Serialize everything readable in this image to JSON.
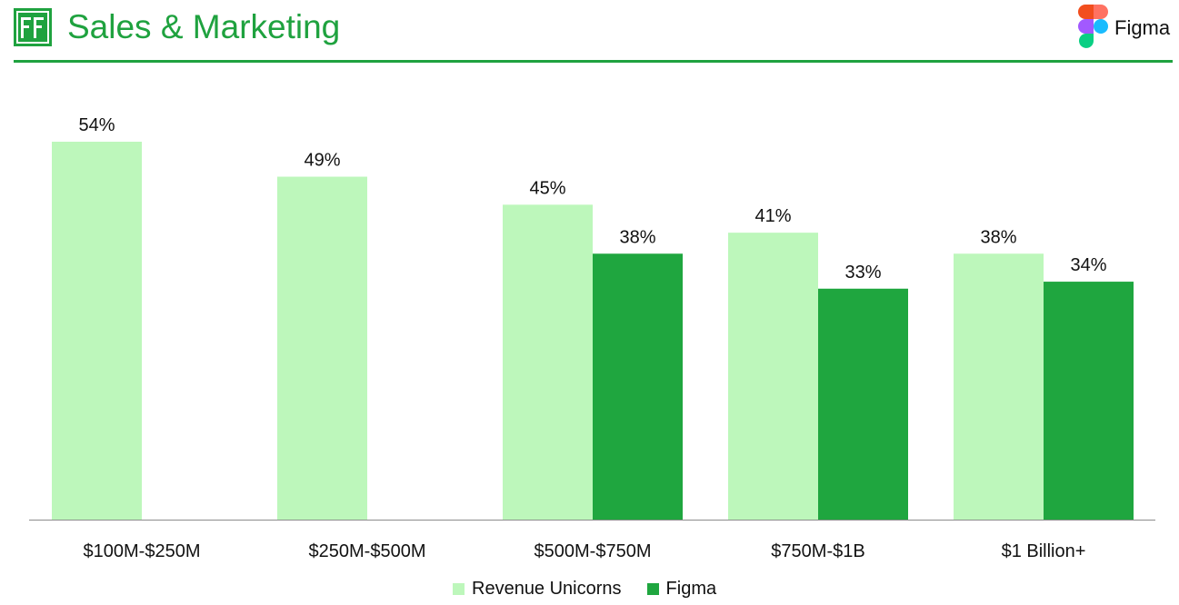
{
  "header": {
    "title": "Sales & Marketing",
    "logo_icon": "ff-logo-icon",
    "brand_name": "Figma",
    "brand_icon": "figma-logo-icon",
    "accent_color": "#1fa23f"
  },
  "chart_data": {
    "type": "bar",
    "title": "Sales & Marketing",
    "xlabel": "",
    "ylabel": "",
    "ylim": [
      0,
      54
    ],
    "grid": false,
    "legend_position": "bottom-center",
    "categories": [
      "$100M-$250M",
      "$250M-$500M",
      "$500M-$750M",
      "$750M-$1B",
      "$1 Billion+"
    ],
    "series": [
      {
        "name": "Revenue Unicorns",
        "color": "#bdf7bb",
        "values": [
          54,
          49,
          45,
          41,
          38
        ],
        "labels": [
          "54%",
          "49%",
          "45%",
          "41%",
          "38%"
        ]
      },
      {
        "name": "Figma",
        "color": "#1fa63f",
        "values": [
          null,
          null,
          38,
          33,
          34
        ],
        "labels": [
          "",
          "",
          "38%",
          "33%",
          "34%"
        ]
      }
    ]
  }
}
